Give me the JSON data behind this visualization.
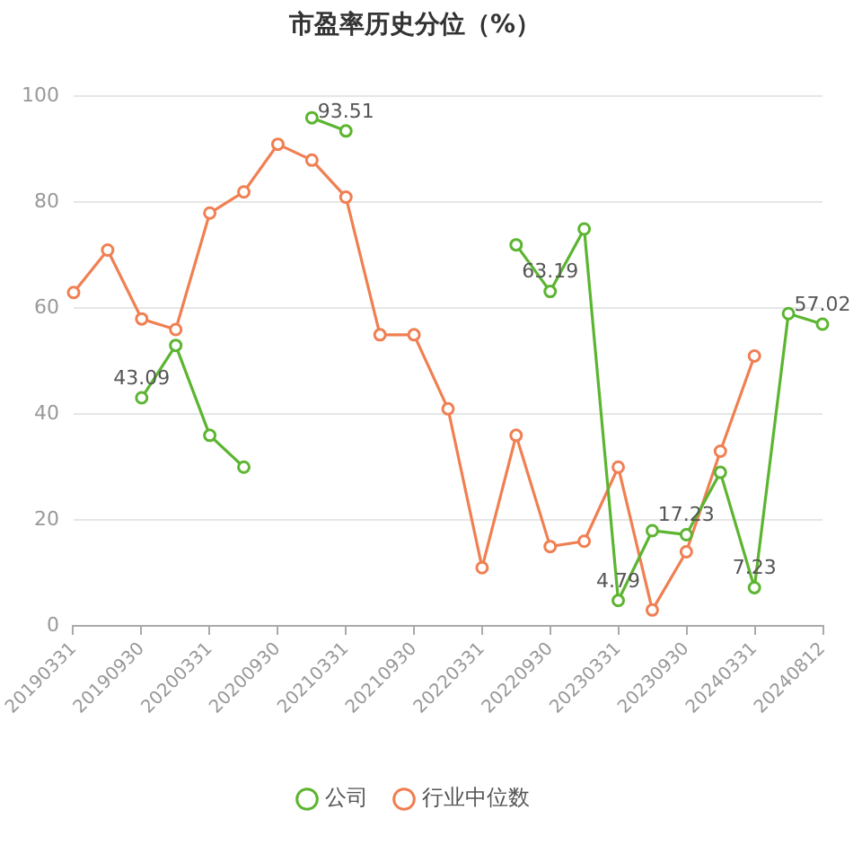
{
  "chart_data": {
    "type": "line",
    "title": "市盈率历史分位（%）",
    "categories": [
      "20190331",
      null,
      "20190930",
      null,
      "20200331",
      null,
      "20200930",
      null,
      "20210331",
      null,
      "20210930",
      null,
      "20220331",
      null,
      "20220930",
      null,
      "20230331",
      null,
      "20230930",
      null,
      "20240331",
      null,
      "20240812"
    ],
    "series": [
      {
        "name": "公司",
        "color": "#5cb531",
        "values": [
          null,
          null,
          43.09,
          53,
          36,
          30,
          null,
          96,
          93.51,
          null,
          null,
          null,
          null,
          72,
          63.19,
          75,
          4.79,
          18,
          17.23,
          29,
          7.23,
          59,
          57.02
        ],
        "value_labels": [
          null,
          null,
          "43.09",
          null,
          null,
          null,
          null,
          null,
          "93.51",
          null,
          null,
          null,
          null,
          null,
          "63.19",
          null,
          "4.79",
          null,
          "17.23",
          null,
          "7.23",
          null,
          "57.02"
        ]
      },
      {
        "name": "行业中位数",
        "color": "#f07f52",
        "values": [
          63,
          71,
          58,
          56,
          78,
          82,
          91,
          88,
          81,
          55,
          55,
          41,
          11,
          36,
          15,
          16,
          30,
          3,
          14,
          33,
          51,
          null,
          null
        ]
      }
    ],
    "ylim": [
      0,
      100
    ],
    "yticks": [
      0,
      20,
      40,
      60,
      80,
      100
    ],
    "grid": "y",
    "legend": "bottom",
    "marker": "circle",
    "line_style": "solid"
  }
}
